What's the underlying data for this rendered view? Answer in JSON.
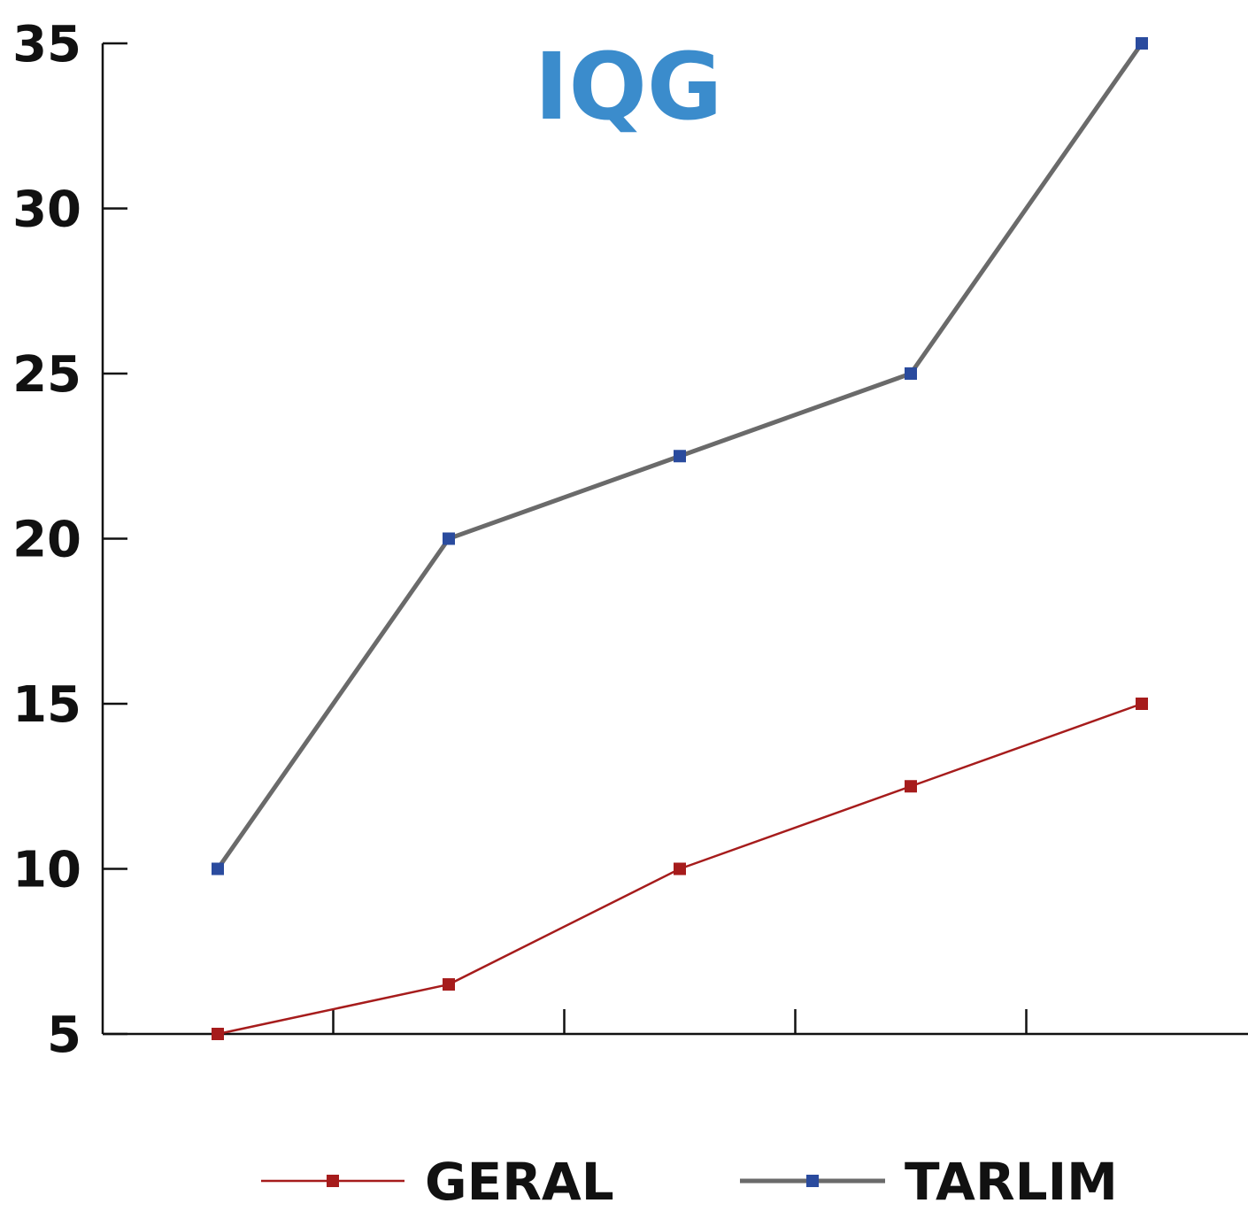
{
  "chart_data": {
    "type": "line",
    "title": "IQG",
    "xlabel": "",
    "ylabel": "",
    "x": [
      1,
      2,
      3,
      4,
      5
    ],
    "xlim": [
      0.5,
      5.5
    ],
    "ylim": [
      5,
      35
    ],
    "yticks": [
      5,
      10,
      15,
      20,
      25,
      30,
      35
    ],
    "x_gridlines": false,
    "y_gridlines": false,
    "legend_position": "bottom-center",
    "series": [
      {
        "name": "GERAL",
        "values": [
          5,
          6.5,
          10,
          12.5,
          15
        ],
        "line_color": "#a61c1c",
        "marker_color": "#a61c1c",
        "marker": "square"
      },
      {
        "name": "TARLIM",
        "values": [
          10,
          20,
          22.5,
          25,
          35
        ],
        "line_color": "#6a6a6a",
        "marker_color": "#2a4b9e",
        "marker": "square"
      }
    ],
    "colors": {
      "title": "#3b8ccc",
      "axis": "#111111",
      "text": "#111111"
    }
  }
}
